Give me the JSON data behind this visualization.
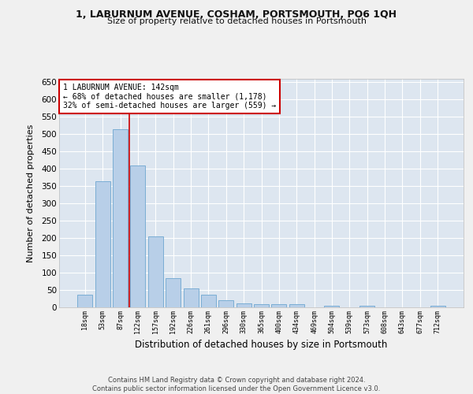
{
  "title1": "1, LABURNUM AVENUE, COSHAM, PORTSMOUTH, PO6 1QH",
  "title2": "Size of property relative to detached houses in Portsmouth",
  "xlabel": "Distribution of detached houses by size in Portsmouth",
  "ylabel": "Number of detached properties",
  "bar_labels": [
    "18sqm",
    "53sqm",
    "87sqm",
    "122sqm",
    "157sqm",
    "192sqm",
    "226sqm",
    "261sqm",
    "296sqm",
    "330sqm",
    "365sqm",
    "400sqm",
    "434sqm",
    "469sqm",
    "504sqm",
    "539sqm",
    "573sqm",
    "608sqm",
    "643sqm",
    "677sqm",
    "712sqm"
  ],
  "bar_values": [
    37,
    365,
    515,
    410,
    205,
    85,
    55,
    37,
    20,
    12,
    8,
    8,
    8,
    0,
    5,
    0,
    5,
    0,
    0,
    0,
    5
  ],
  "bar_color": "#b8cfe8",
  "bar_edge_color": "#7aadd4",
  "vline_x": 2.5,
  "vline_color": "#cc0000",
  "annotation_title": "1 LABURNUM AVENUE: 142sqm",
  "annotation_line1": "← 68% of detached houses are smaller (1,178)",
  "annotation_line2": "32% of semi-detached houses are larger (559) →",
  "annotation_box_facecolor": "#ffffff",
  "annotation_box_edgecolor": "#cc0000",
  "yticks": [
    0,
    50,
    100,
    150,
    200,
    250,
    300,
    350,
    400,
    450,
    500,
    550,
    600,
    650
  ],
  "ylim": [
    0,
    660
  ],
  "background_color": "#dde6f0",
  "fig_facecolor": "#f0f0f0",
  "footer1": "Contains HM Land Registry data © Crown copyright and database right 2024.",
  "footer2": "Contains public sector information licensed under the Open Government Licence v3.0."
}
